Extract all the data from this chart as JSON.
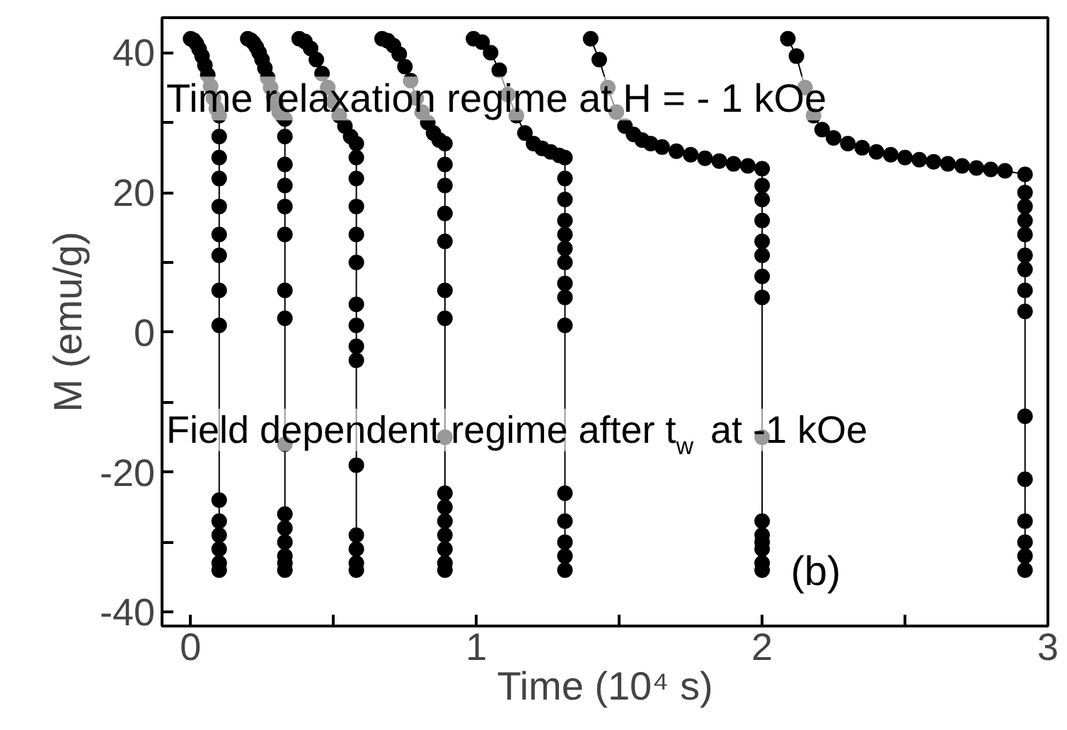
{
  "chart_data": {
    "type": "line",
    "xlabel": "Time (10⁴ s)",
    "ylabel": "M (emu/g)",
    "xlim": [
      -0.1,
      3.0
    ],
    "ylim": [
      -42,
      45
    ],
    "xticks": [
      0,
      {
        "value": 0.5,
        "label": null
      },
      1,
      {
        "value": 1.5,
        "label": null
      },
      2,
      {
        "value": 2.5,
        "label": null
      },
      3
    ],
    "yticks": [
      -40,
      {
        "value": -30,
        "label": null
      },
      -20,
      {
        "value": -10,
        "label": null
      },
      0,
      {
        "value": 10,
        "label": null
      },
      20,
      {
        "value": 30,
        "label": null
      },
      40
    ],
    "grid": false,
    "marker": "circle",
    "line_style": "solid",
    "annotations": [
      "Time relaxation regime at  H = - 1 kOe",
      "Field dependent regime after t$_{w}$ at -1 kOe",
      "(b)"
    ],
    "series": [
      {
        "color": "#000000",
        "x": [
          0,
          0.01,
          0.02,
          0.03,
          0.04,
          0.05,
          0.06,
          0.07,
          0.08,
          0.09,
          0.1,
          0.1,
          0.1,
          0.1,
          0.1,
          0.1,
          0.1,
          0.1,
          0.1,
          0.1,
          0.1,
          0.1,
          0.1,
          0.1,
          0.1,
          null,
          0.2,
          0.21,
          0.22,
          0.23,
          0.24,
          0.25,
          0.26,
          0.27,
          0.28,
          0.29,
          0.3,
          0.31,
          0.32,
          0.33,
          0.33,
          0.33,
          0.33,
          0.33,
          0.33,
          0.33,
          0.33,
          0.33,
          0.33,
          0.33,
          0.33,
          0.33,
          0.33,
          0.33,
          null,
          0.38,
          0.4,
          0.42,
          0.44,
          0.46,
          0.48,
          0.5,
          0.52,
          0.54,
          0.56,
          0.58,
          0.58,
          0.58,
          0.58,
          0.58,
          0.58,
          0.58,
          0.58,
          0.58,
          0.58,
          0.58,
          0.58,
          0.58,
          0.58,
          0.58,
          null,
          0.67,
          0.69,
          0.71,
          0.73,
          0.75,
          0.77,
          0.79,
          0.81,
          0.83,
          0.85,
          0.87,
          0.89,
          0.89,
          0.89,
          0.89,
          0.89,
          0.89,
          0.89,
          0.89,
          0.89,
          0.89,
          0.89,
          0.89,
          0.89,
          0.89,
          0.89,
          null,
          0.99,
          1.02,
          1.05,
          1.08,
          1.11,
          1.14,
          1.17,
          1.2,
          1.23,
          1.26,
          1.29,
          1.31,
          1.31,
          1.31,
          1.31,
          1.31,
          1.31,
          1.31,
          1.31,
          1.31,
          1.31,
          1.31,
          1.31,
          1.31,
          1.31,
          1.31,
          null,
          1.4,
          1.43,
          1.46,
          1.49,
          1.52,
          1.55,
          1.58,
          1.61,
          1.65,
          1.7,
          1.75,
          1.8,
          1.85,
          1.9,
          1.95,
          2.0,
          2.0,
          2.0,
          2.0,
          2.0,
          2.0,
          2.0,
          2.0,
          2.0,
          2.0,
          2.0,
          2.0,
          2.0,
          2.0,
          2.0,
          null,
          2.09,
          2.12,
          2.15,
          2.18,
          2.21,
          2.25,
          2.3,
          2.35,
          2.4,
          2.45,
          2.5,
          2.55,
          2.6,
          2.65,
          2.7,
          2.75,
          2.8,
          2.85,
          2.92,
          2.92,
          2.92,
          2.92,
          2.92,
          2.92,
          2.92,
          2.92,
          2.92,
          2.92,
          2.92,
          2.92,
          2.92,
          2.92,
          2.92
        ],
        "values": [
          42,
          41.8,
          41.3,
          40.5,
          39.5,
          38.2,
          36.8,
          35.2,
          33.5,
          32,
          31,
          28,
          25,
          22,
          18,
          14,
          11,
          6,
          1,
          -24,
          -27,
          -29,
          -31,
          -33,
          -34,
          null,
          42,
          41.8,
          41.4,
          40.8,
          40,
          39,
          37.8,
          36.4,
          35,
          33.6,
          32.5,
          31.5,
          31,
          30.5,
          28,
          24,
          21,
          18,
          14,
          6,
          2,
          -16,
          -26,
          -28,
          -30,
          -32,
          -33,
          -34,
          null,
          42,
          41.6,
          40.6,
          39,
          37,
          35,
          33,
          31,
          29.5,
          28,
          27,
          25,
          22,
          18,
          14,
          10,
          4,
          1,
          -2,
          -4,
          -19,
          -29,
          -31,
          -33,
          -34,
          null,
          42,
          41.7,
          41,
          39.8,
          38,
          36,
          33.5,
          31.5,
          30,
          28.5,
          27.5,
          27,
          24,
          21,
          17,
          13,
          6,
          2,
          -15,
          -23,
          -25,
          -27,
          -29,
          -31,
          -33,
          -34,
          null,
          42,
          41.5,
          40,
          37.5,
          34,
          31,
          28.5,
          27,
          26.3,
          25.8,
          25.3,
          25,
          22,
          19,
          16,
          14,
          12,
          10,
          7,
          5,
          1,
          -23,
          -27,
          -30,
          -32,
          -34,
          null,
          42,
          39,
          35,
          31.5,
          29.5,
          28.3,
          27.5,
          27,
          26.5,
          25.9,
          25.4,
          24.9,
          24.5,
          24.1,
          23.8,
          23.4,
          21,
          19,
          16,
          13,
          11,
          8,
          5,
          -15,
          -27,
          -29,
          -30,
          -31,
          -33,
          -34,
          null,
          42,
          39.5,
          35,
          31,
          29,
          27.8,
          27,
          26.4,
          25.8,
          25.4,
          25,
          24.7,
          24.4,
          24.1,
          23.8,
          23.5,
          23.3,
          23.1,
          22.6,
          20,
          18,
          16,
          14,
          11,
          9,
          6,
          3,
          -12,
          -21,
          -27,
          -30,
          -32,
          -34
        ]
      }
    ]
  }
}
